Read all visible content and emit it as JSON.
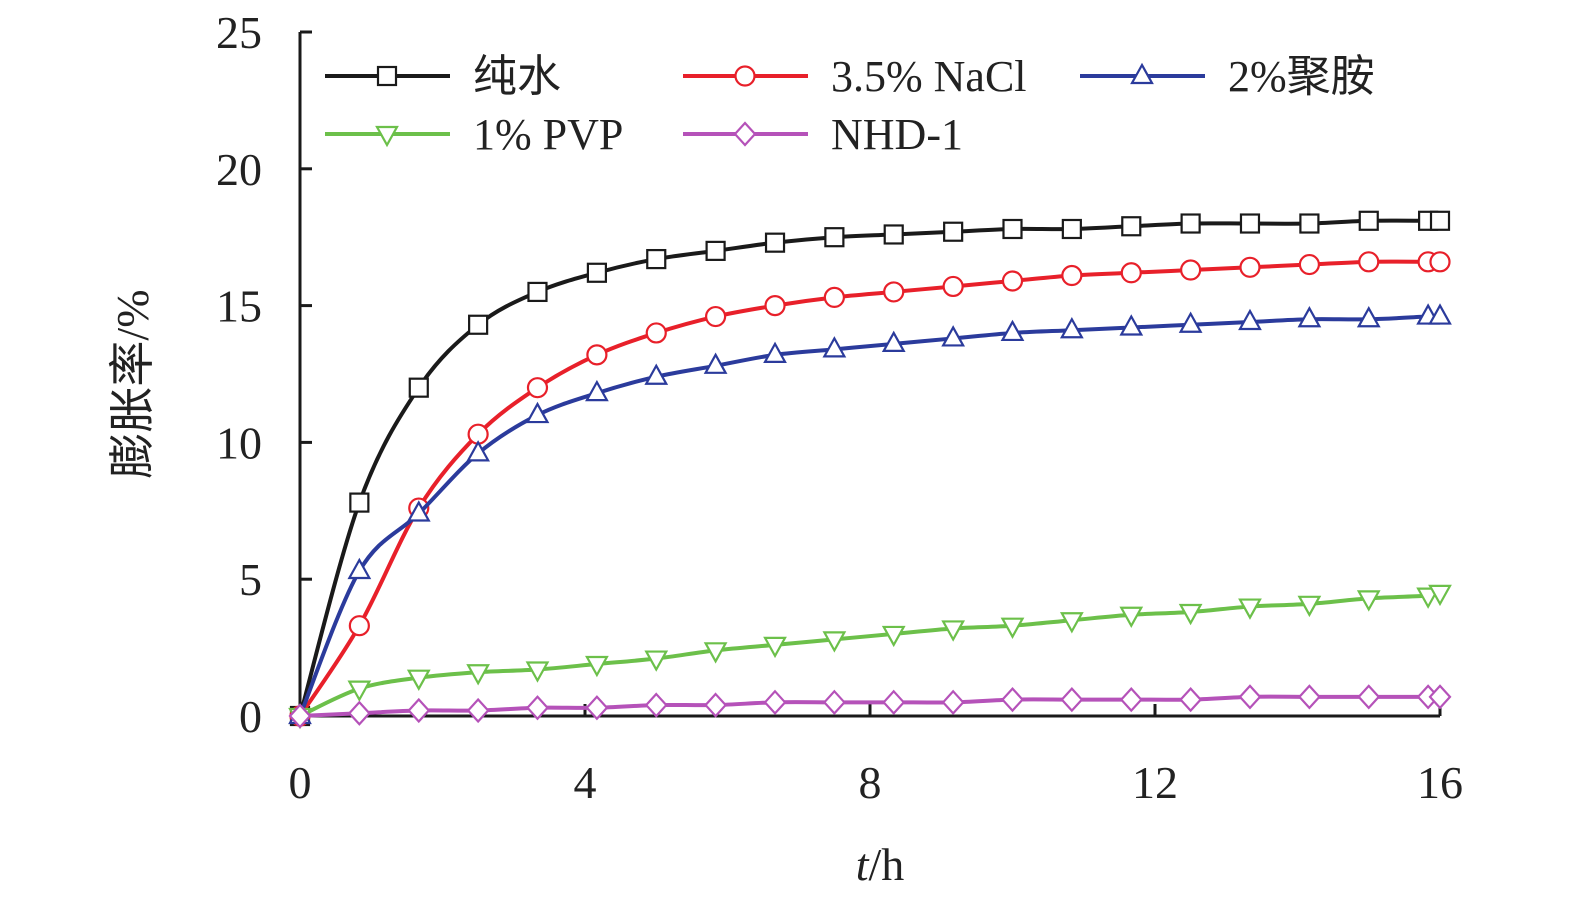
{
  "chart_data": {
    "type": "line",
    "title": "",
    "xlabel": "t/h",
    "xlabel_italic_part": "t",
    "xlabel_unit_part": "/h",
    "ylabel": "膨胀率/%",
    "xlim": [
      0,
      16
    ],
    "ylim": [
      0,
      25
    ],
    "xticks": [
      0,
      4,
      8,
      12,
      16
    ],
    "yticks": [
      0,
      5,
      10,
      15,
      20,
      25
    ],
    "grid": false,
    "legend_position": "top-left",
    "x": [
      0,
      0.833,
      1.667,
      2.5,
      3.333,
      4.167,
      5,
      5.833,
      6.667,
      7.5,
      8.333,
      9.167,
      10,
      10.833,
      11.667,
      12.5,
      13.333,
      14.167,
      15,
      15.833,
      16
    ],
    "series": [
      {
        "name": "纯水",
        "color": "#1a1a1a",
        "marker": "square",
        "values": [
          0,
          7.8,
          12.0,
          14.3,
          15.5,
          16.2,
          16.7,
          17.0,
          17.3,
          17.5,
          17.6,
          17.7,
          17.8,
          17.8,
          17.9,
          18.0,
          18.0,
          18.0,
          18.1,
          18.1,
          18.1
        ]
      },
      {
        "name": "3.5% NaCl",
        "color": "#e8202a",
        "marker": "circle",
        "values": [
          0,
          3.3,
          7.6,
          10.3,
          12.0,
          13.2,
          14.0,
          14.6,
          15.0,
          15.3,
          15.5,
          15.7,
          15.9,
          16.1,
          16.2,
          16.3,
          16.4,
          16.5,
          16.6,
          16.6,
          16.6
        ]
      },
      {
        "name": "2%聚胺",
        "color": "#2b3b9c",
        "marker": "triangle-up",
        "values": [
          0,
          5.3,
          7.4,
          9.6,
          11.0,
          11.8,
          12.4,
          12.8,
          13.2,
          13.4,
          13.6,
          13.8,
          14.0,
          14.1,
          14.2,
          14.3,
          14.4,
          14.5,
          14.5,
          14.6,
          14.6
        ]
      },
      {
        "name": "1% PVP",
        "color": "#6cc04a",
        "marker": "triangle-down",
        "values": [
          0,
          1.0,
          1.4,
          1.6,
          1.7,
          1.9,
          2.1,
          2.4,
          2.6,
          2.8,
          3.0,
          3.2,
          3.3,
          3.5,
          3.7,
          3.8,
          4.0,
          4.1,
          4.3,
          4.4,
          4.5
        ]
      },
      {
        "name": "NHD-1",
        "color": "#b552b9",
        "marker": "diamond",
        "values": [
          0,
          0.1,
          0.2,
          0.2,
          0.3,
          0.3,
          0.4,
          0.4,
          0.5,
          0.5,
          0.5,
          0.5,
          0.6,
          0.6,
          0.6,
          0.6,
          0.7,
          0.7,
          0.7,
          0.7,
          0.7
        ]
      }
    ]
  }
}
